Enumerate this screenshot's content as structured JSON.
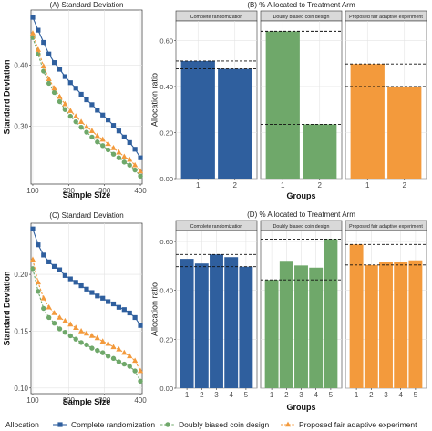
{
  "colors": {
    "complete_randomization": "#2f5f9e",
    "doubly_biased_coin_design": "#6fa86a",
    "proposed_fair_adaptive_experiment": "#f39a3c",
    "grid": "#e3e3e3",
    "strip_fill": "#d9d9d9",
    "axis_text": "#4d4d4d"
  },
  "legend": {
    "title": "Allocation",
    "items": [
      {
        "label": "Complete randomization",
        "color_key": "complete_randomization",
        "marker": "square"
      },
      {
        "label": "Doubly biased coin design",
        "color_key": "doubly_biased_coin_design",
        "marker": "circle"
      },
      {
        "label": "Proposed fair adaptive experiment",
        "color_key": "proposed_fair_adaptive_experiment",
        "marker": "triangle"
      }
    ]
  },
  "chart_data": [
    {
      "id": "A",
      "type": "line",
      "title": "(A) Standard Deviation",
      "xlabel": "Sample Size",
      "ylabel": "Standard Deviation",
      "xlim": [
        95,
        405
      ],
      "ylim": [
        0.205,
        0.49
      ],
      "xticks": [
        100,
        200,
        300,
        400
      ],
      "yticks": [
        0.3,
        0.4
      ],
      "ytick_labels": [
        "0.30",
        "0.40"
      ],
      "x": [
        100,
        115,
        130,
        145,
        160,
        175,
        190,
        205,
        220,
        235,
        250,
        265,
        280,
        295,
        310,
        325,
        340,
        355,
        370,
        385,
        400
      ],
      "series": [
        {
          "color_key": "complete_randomization",
          "marker": "square",
          "linestyle": "solid",
          "values": [
            0.478,
            0.457,
            0.437,
            0.418,
            0.404,
            0.393,
            0.381,
            0.371,
            0.362,
            0.352,
            0.343,
            0.335,
            0.326,
            0.318,
            0.31,
            0.301,
            0.292,
            0.282,
            0.273,
            0.262,
            0.248
          ]
        },
        {
          "color_key": "doubly_biased_coin_design",
          "marker": "circle",
          "linestyle": "dashed",
          "values": [
            0.445,
            0.418,
            0.39,
            0.37,
            0.355,
            0.34,
            0.327,
            0.316,
            0.307,
            0.298,
            0.29,
            0.282,
            0.274,
            0.268,
            0.261,
            0.254,
            0.248,
            0.241,
            0.236,
            0.228,
            0.218
          ]
        },
        {
          "color_key": "proposed_fair_adaptive_experiment",
          "marker": "triangle",
          "linestyle": "dashed",
          "values": [
            0.452,
            0.425,
            0.398,
            0.377,
            0.362,
            0.348,
            0.336,
            0.325,
            0.316,
            0.307,
            0.299,
            0.292,
            0.284,
            0.278,
            0.271,
            0.264,
            0.257,
            0.25,
            0.245,
            0.236,
            0.226
          ]
        }
      ]
    },
    {
      "id": "B",
      "type": "bar",
      "title": "(B) % Allocated to Treatment Arm",
      "xlabel": "Groups",
      "ylabel": "Allocation ratio",
      "ylim": [
        0,
        0.685
      ],
      "yticks": [
        0,
        0.2,
        0.4,
        0.6
      ],
      "ytick_labels": [
        "0.00",
        "0.20",
        "0.40",
        "0.60"
      ],
      "categories": [
        "1",
        "2"
      ],
      "facets": [
        {
          "label": "Complete randomization",
          "color_key": "complete_randomization",
          "values": [
            0.511,
            0.477
          ],
          "hlines": [
            0.511,
            0.477
          ]
        },
        {
          "label": "Doubly biased coin design",
          "color_key": "doubly_biased_coin_design",
          "values": [
            0.64,
            0.236
          ],
          "hlines": [
            0.64,
            0.236
          ]
        },
        {
          "label": "Proposed fair adaptive experiment",
          "color_key": "proposed_fair_adaptive_experiment",
          "values": [
            0.498,
            0.4
          ],
          "hlines": [
            0.498,
            0.4
          ]
        }
      ]
    },
    {
      "id": "C",
      "type": "line",
      "title": "(C) Standard Deviation",
      "xlabel": "Sample Size",
      "ylabel": "Standard Deviation",
      "xlim": [
        95,
        405
      ],
      "ylim": [
        0.095,
        0.245
      ],
      "xticks": [
        100,
        200,
        300,
        400
      ],
      "yticks": [
        0.1,
        0.15,
        0.2
      ],
      "ytick_labels": [
        "0.10",
        "0.15",
        "0.20"
      ],
      "x": [
        100,
        115,
        130,
        145,
        160,
        175,
        190,
        205,
        220,
        235,
        250,
        265,
        280,
        295,
        310,
        325,
        340,
        355,
        370,
        385,
        400
      ],
      "series": [
        {
          "color_key": "complete_randomization",
          "marker": "square",
          "linestyle": "solid",
          "values": [
            0.24,
            0.226,
            0.217,
            0.211,
            0.207,
            0.204,
            0.199,
            0.196,
            0.193,
            0.19,
            0.187,
            0.184,
            0.181,
            0.179,
            0.176,
            0.174,
            0.171,
            0.169,
            0.166,
            0.162,
            0.155
          ]
        },
        {
          "color_key": "doubly_biased_coin_design",
          "marker": "circle",
          "linestyle": "dashed",
          "values": [
            0.205,
            0.185,
            0.17,
            0.162,
            0.157,
            0.152,
            0.149,
            0.146,
            0.143,
            0.14,
            0.138,
            0.135,
            0.133,
            0.131,
            0.128,
            0.126,
            0.123,
            0.121,
            0.119,
            0.115,
            0.106
          ]
        },
        {
          "color_key": "proposed_fair_adaptive_experiment",
          "marker": "triangle",
          "linestyle": "dashed",
          "values": [
            0.213,
            0.193,
            0.179,
            0.171,
            0.166,
            0.162,
            0.159,
            0.156,
            0.153,
            0.15,
            0.148,
            0.146,
            0.144,
            0.141,
            0.139,
            0.136,
            0.134,
            0.131,
            0.128,
            0.124,
            0.115
          ]
        }
      ]
    },
    {
      "id": "D",
      "type": "bar",
      "title": "(D) % Allocated to Treatment Arm",
      "xlabel": "Groups",
      "ylabel": "Allocation ratio",
      "ylim": [
        0,
        0.645
      ],
      "yticks": [
        0,
        0.2,
        0.4,
        0.6
      ],
      "ytick_labels": [
        "0.00",
        "0.20",
        "0.40",
        "0.60"
      ],
      "categories": [
        "1",
        "2",
        "3",
        "4",
        "5"
      ],
      "facets": [
        {
          "label": "Complete randomization",
          "color_key": "complete_randomization",
          "values": [
            0.529,
            0.51,
            0.547,
            0.536,
            0.497
          ],
          "hlines": [
            0.547,
            0.497
          ]
        },
        {
          "label": "Doubly biased coin design",
          "color_key": "doubly_biased_coin_design",
          "values": [
            0.443,
            0.521,
            0.502,
            0.493,
            0.61
          ],
          "hlines": [
            0.61,
            0.443
          ]
        },
        {
          "label": "Proposed fair adaptive experiment",
          "color_key": "proposed_fair_adaptive_experiment",
          "values": [
            0.588,
            0.504,
            0.518,
            0.516,
            0.523
          ],
          "hlines": [
            0.588,
            0.504
          ]
        }
      ]
    }
  ]
}
